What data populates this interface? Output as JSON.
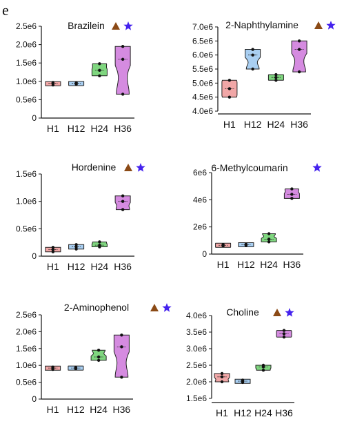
{
  "panel_label": "e",
  "colors": {
    "H1": "#f1a7a7",
    "H12": "#a9cff2",
    "H24": "#7fd67f",
    "H36": "#d58be0",
    "triangle": "#8b4a16",
    "star": "#4422ee"
  },
  "icons": [
    "triangle-icon",
    "star-icon"
  ],
  "chart_data": [
    {
      "type": "violin",
      "title": "Brazilein",
      "markers": [
        "triangle",
        "star"
      ],
      "categories": [
        "H1",
        "H12",
        "H24",
        "H36"
      ],
      "ylim": [
        0,
        2500000
      ],
      "yticks": [
        {
          "v": 0,
          "label": "0"
        },
        {
          "v": 500000,
          "label": "0.5e6"
        },
        {
          "v": 1000000,
          "label": "1.0e6"
        },
        {
          "v": 1500000,
          "label": "1.5e6"
        },
        {
          "v": 2000000,
          "label": "2.0e6"
        },
        {
          "v": 2500000,
          "label": "2.5e6"
        }
      ],
      "series": [
        {
          "category": "H1",
          "values": [
            900000,
            950000,
            970000
          ]
        },
        {
          "category": "H12",
          "values": [
            920000,
            950000,
            960000
          ]
        },
        {
          "category": "H24",
          "values": [
            1150000,
            1300000,
            1480000
          ]
        },
        {
          "category": "H36",
          "values": [
            650000,
            1600000,
            1950000
          ]
        }
      ]
    },
    {
      "type": "violin",
      "title": "2-Naphthylamine",
      "markers": [
        "triangle",
        "star"
      ],
      "categories": [
        "H1",
        "H12",
        "H24",
        "H36"
      ],
      "ylim": [
        4000000,
        7000000
      ],
      "yticks": [
        {
          "v": 4000000,
          "label": "4.0e6"
        },
        {
          "v": 4500000,
          "label": "4.5e6"
        },
        {
          "v": 5000000,
          "label": "5.0e6"
        },
        {
          "v": 5500000,
          "label": "5.5e6"
        },
        {
          "v": 6000000,
          "label": "6.0e6"
        },
        {
          "v": 6500000,
          "label": "6.5e6"
        },
        {
          "v": 7000000,
          "label": "7.0e6"
        }
      ],
      "series": [
        {
          "category": "H1",
          "values": [
            4500000,
            4800000,
            5100000
          ]
        },
        {
          "category": "H12",
          "values": [
            5500000,
            6000000,
            6200000
          ]
        },
        {
          "category": "H24",
          "values": [
            5100000,
            5200000,
            5300000
          ]
        },
        {
          "category": "H36",
          "values": [
            5400000,
            6200000,
            6500000
          ]
        }
      ]
    },
    {
      "type": "violin",
      "title": "Hordenine",
      "markers": [
        "triangle",
        "star"
      ],
      "categories": [
        "H1",
        "H12",
        "H24",
        "H36"
      ],
      "ylim": [
        0,
        1500000
      ],
      "yticks": [
        {
          "v": 0,
          "label": "0"
        },
        {
          "v": 500000,
          "label": "0.5e6"
        },
        {
          "v": 1000000,
          "label": "1.0e6"
        },
        {
          "v": 1500000,
          "label": "1.5e6"
        }
      ],
      "series": [
        {
          "category": "H1",
          "values": [
            80000,
            120000,
            160000
          ]
        },
        {
          "category": "H12",
          "values": [
            130000,
            170000,
            210000
          ]
        },
        {
          "category": "H24",
          "values": [
            170000,
            200000,
            260000
          ]
        },
        {
          "category": "H36",
          "values": [
            850000,
            1000000,
            1100000
          ]
        }
      ]
    },
    {
      "type": "violin",
      "title": "6-Methylcoumarin",
      "markers": [
        "star"
      ],
      "categories": [
        "H1",
        "H12",
        "H24",
        "H36"
      ],
      "ylim": [
        0,
        6000000
      ],
      "yticks": [
        {
          "v": 0,
          "label": "0"
        },
        {
          "v": 2000000,
          "label": "2e6"
        },
        {
          "v": 4000000,
          "label": "4e6"
        },
        {
          "v": 6000000,
          "label": "6e6"
        }
      ],
      "series": [
        {
          "category": "H1",
          "values": [
            600000,
            650000,
            700000
          ]
        },
        {
          "category": "H12",
          "values": [
            650000,
            700000,
            720000
          ]
        },
        {
          "category": "H24",
          "values": [
            900000,
            1100000,
            1500000
          ]
        },
        {
          "category": "H36",
          "values": [
            4100000,
            4400000,
            4800000
          ]
        }
      ]
    },
    {
      "type": "violin",
      "title": "2-Aminophenol",
      "markers": [
        "triangle",
        "star"
      ],
      "categories": [
        "H1",
        "H12",
        "H24",
        "H36"
      ],
      "ylim": [
        0,
        2500000
      ],
      "yticks": [
        {
          "v": 0,
          "label": "0"
        },
        {
          "v": 500000,
          "label": "0.5e6"
        },
        {
          "v": 1000000,
          "label": "1.0e6"
        },
        {
          "v": 1500000,
          "label": "1.5e6"
        },
        {
          "v": 2000000,
          "label": "2.0e6"
        },
        {
          "v": 2500000,
          "label": "2.5e6"
        }
      ],
      "series": [
        {
          "category": "H1",
          "values": [
            880000,
            920000,
            950000
          ]
        },
        {
          "category": "H12",
          "values": [
            900000,
            920000,
            940000
          ]
        },
        {
          "category": "H24",
          "values": [
            1150000,
            1250000,
            1450000
          ]
        },
        {
          "category": "H36",
          "values": [
            650000,
            1550000,
            1900000
          ]
        }
      ]
    },
    {
      "type": "violin",
      "title": "Choline",
      "markers": [
        "triangle",
        "star"
      ],
      "categories": [
        "H1",
        "H12",
        "H24",
        "H36"
      ],
      "ylim": [
        1500000,
        4000000
      ],
      "yticks": [
        {
          "v": 1500000,
          "label": "1.5e6"
        },
        {
          "v": 2000000,
          "label": "2.0e6"
        },
        {
          "v": 2500000,
          "label": "2.5e6"
        },
        {
          "v": 3000000,
          "label": "3.0e6"
        },
        {
          "v": 3500000,
          "label": "3.5e6"
        },
        {
          "v": 4000000,
          "label": "4.0e6"
        }
      ],
      "series": [
        {
          "category": "H1",
          "values": [
            2000000,
            2150000,
            2250000
          ]
        },
        {
          "category": "H12",
          "values": [
            1980000,
            2020000,
            2050000
          ]
        },
        {
          "category": "H24",
          "values": [
            2350000,
            2450000,
            2500000
          ]
        },
        {
          "category": "H36",
          "values": [
            3350000,
            3450000,
            3550000
          ]
        }
      ]
    }
  ]
}
